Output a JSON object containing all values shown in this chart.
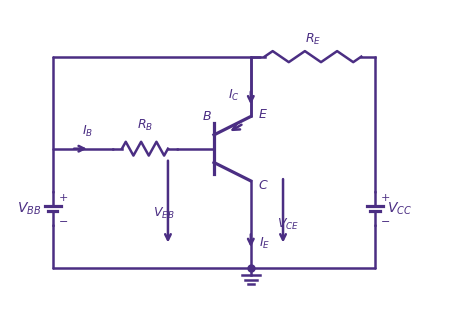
{
  "color": "#4B2E83",
  "bg_color": "#ffffff",
  "line_width": 1.8,
  "fig_width": 4.74,
  "fig_height": 3.25,
  "dpi": 100
}
